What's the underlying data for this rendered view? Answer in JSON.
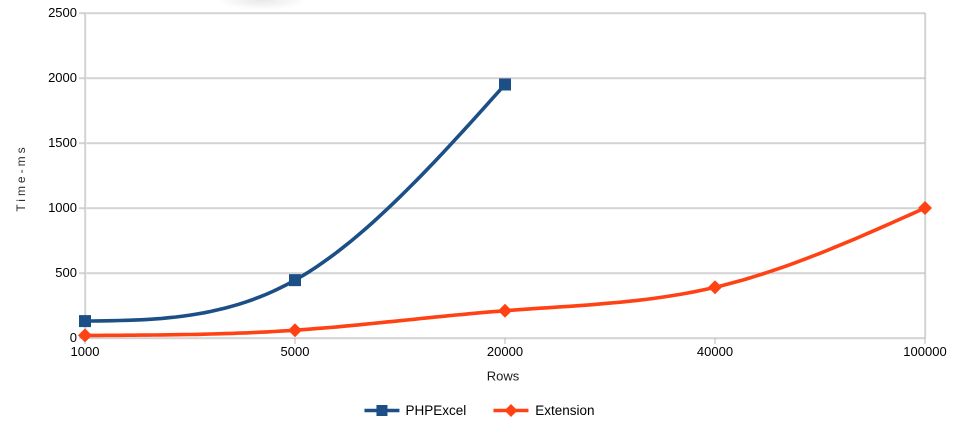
{
  "chart_data": {
    "type": "line",
    "title": "",
    "xlabel": "Rows",
    "ylabel": "Time-ms",
    "x_axis_type": "category",
    "categories": [
      "1000",
      "5000",
      "20000",
      "40000",
      "100000"
    ],
    "series": [
      {
        "name": "PHPExcel",
        "color": "#1b4f86",
        "marker": "square",
        "values": [
          130,
          445,
          1950
        ]
      },
      {
        "name": "Extension",
        "color": "#ff4214",
        "marker": "diamond",
        "values": [
          20,
          60,
          210,
          390,
          1000
        ]
      }
    ],
    "ylim": [
      0,
      2500
    ],
    "yticks": [
      0,
      500,
      1000,
      1500,
      2000,
      2500
    ],
    "grid": "horizontal",
    "line_smoothing": "cubic-spline",
    "legend_position": "bottom"
  },
  "colors": {
    "background": "#ffffff",
    "grid": "#b9b9b9",
    "grid_highlight": "#ededed",
    "tick_text": "#000000",
    "axis_title_text": "#2e2e2e",
    "legend_text": "#000000"
  }
}
